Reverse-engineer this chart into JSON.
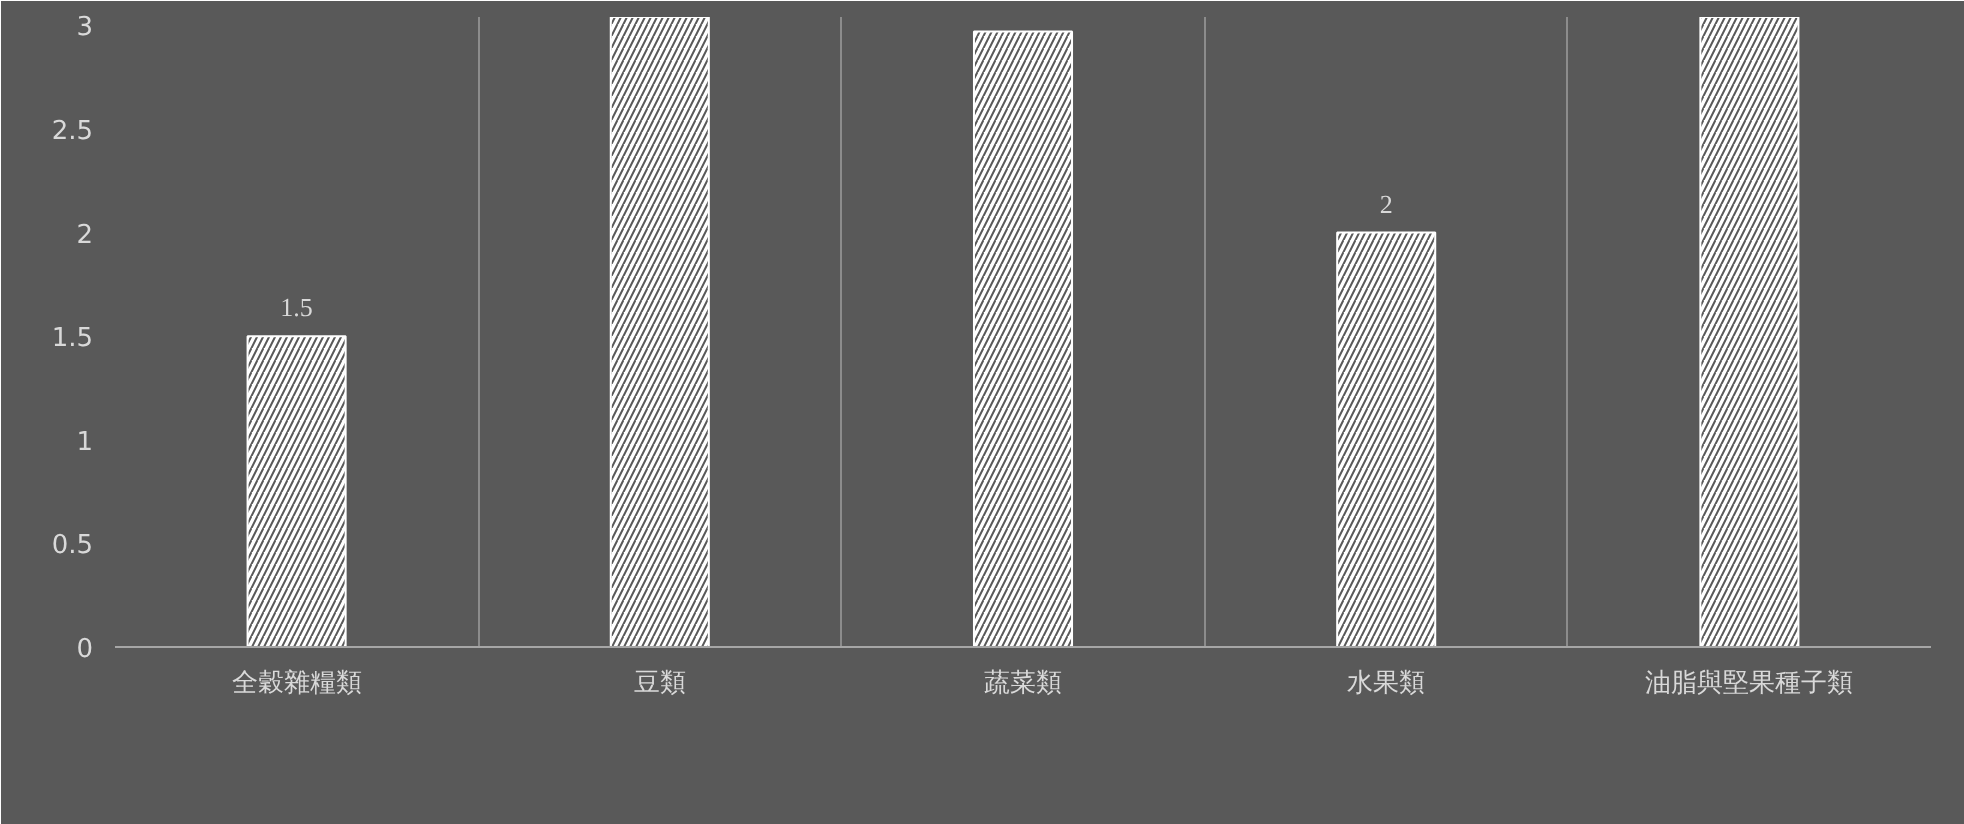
{
  "chart_data": {
    "type": "bar",
    "categories": [
      "全穀雜糧類",
      "豆類",
      "蔬菜類",
      "水果類",
      "油脂與堅果種子類"
    ],
    "values": [
      1.5,
      3.04,
      2.97,
      2,
      3.04
    ],
    "color": "#ffffff",
    "value_labels": [
      "1.5",
      null,
      null,
      "2",
      null
    ],
    "ylim": [
      0,
      3.04
    ],
    "yticks": [
      0,
      0.5,
      1,
      1.5,
      2,
      2.5,
      3
    ],
    "grid": "x"
  }
}
